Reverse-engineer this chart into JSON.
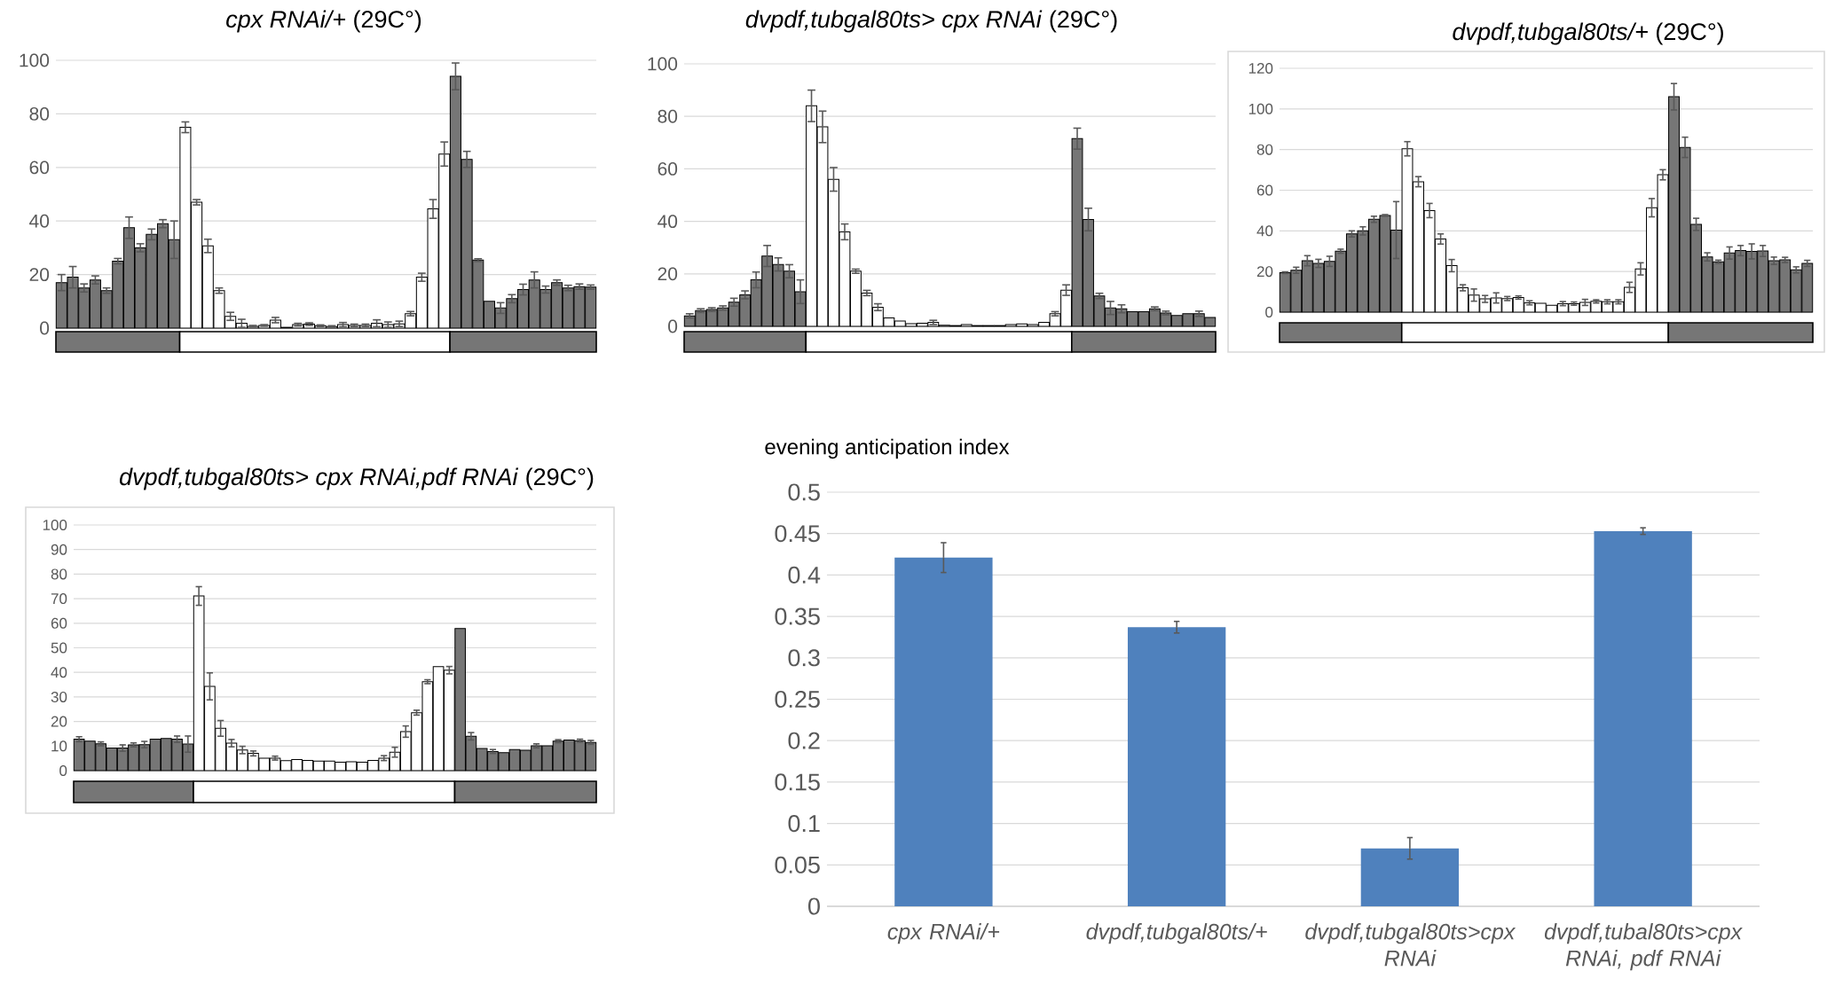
{
  "chart_data": [
    {
      "type": "bar",
      "title": "*cpx RNAi/+* (29C°)",
      "categories": [
        null,
        null,
        null,
        null,
        null,
        null,
        null,
        null,
        null,
        null,
        null,
        null,
        null,
        null,
        null,
        null,
        null,
        null,
        null,
        null,
        null,
        null,
        null,
        null,
        null,
        null,
        null,
        null,
        null,
        null,
        null,
        null,
        null,
        null,
        null,
        null,
        null,
        null,
        null,
        null,
        null,
        null,
        null,
        null,
        null,
        null,
        null,
        null
      ],
      "values": [
        17,
        19,
        15,
        18,
        14,
        25,
        37.5,
        30,
        35,
        39,
        33,
        75,
        47,
        30.7,
        14,
        4.4,
        1.8,
        0.7,
        1,
        3,
        0.3,
        1.3,
        1.5,
        0.9,
        0.6,
        1.3,
        1,
        1,
        1.8,
        1.3,
        1.6,
        5.4,
        19,
        44.5,
        65,
        94,
        63,
        25.4,
        10,
        7.5,
        11,
        14.4,
        18,
        14.4,
        17,
        15,
        15.5,
        15.3
      ],
      "errors": [
        3,
        4,
        1.5,
        1.5,
        1,
        1,
        4,
        1.5,
        2,
        1.5,
        7,
        2,
        1,
        2.5,
        1,
        1.5,
        1.5,
        0.3,
        0.3,
        1,
        null,
        0.5,
        0.5,
        0.3,
        0.3,
        0.8,
        0.5,
        0.5,
        1.3,
        1,
        1,
        0.8,
        1.5,
        3.5,
        4.5,
        5,
        3,
        0.5,
        null,
        2,
        1.5,
        2,
        3,
        1.3,
        1,
        1,
        1,
        0.8
      ],
      "colors": [
        "#767676",
        "#767676",
        "#767676",
        "#767676",
        "#767676",
        "#767676",
        "#767676",
        "#767676",
        "#767676",
        "#767676",
        "#767676",
        "#ffffff",
        "#ffffff",
        "#ffffff",
        "#ffffff",
        "#ffffff",
        "#ffffff",
        "#ffffff",
        "#ffffff",
        "#ffffff",
        "#ffffff",
        "#ffffff",
        "#ffffff",
        "#ffffff",
        "#ffffff",
        "#ffffff",
        "#ffffff",
        "#ffffff",
        "#ffffff",
        "#ffffff",
        "#ffffff",
        "#ffffff",
        "#ffffff",
        "#ffffff",
        "#ffffff",
        "#767676",
        "#767676",
        "#767676",
        "#767676",
        "#767676",
        "#767676",
        "#767676",
        "#767676",
        "#767676",
        "#767676",
        "#767676",
        "#767676",
        "#767676"
      ],
      "ylim": [
        0,
        100
      ],
      "yticks": [
        0,
        20,
        40,
        60,
        80,
        100
      ],
      "grid": "y",
      "tick_labels": "y"
    },
    {
      "type": "bar",
      "title": "*dvpdf,tubgal80ts> cpx RNAi* (29C°)",
      "categories": [
        null,
        null,
        null,
        null,
        null,
        null,
        null,
        null,
        null,
        null,
        null,
        null,
        null,
        null,
        null,
        null,
        null,
        null,
        null,
        null,
        null,
        null,
        null,
        null,
        null,
        null,
        null,
        null,
        null,
        null,
        null,
        null,
        null,
        null,
        null,
        null,
        null,
        null,
        null,
        null,
        null,
        null,
        null,
        null,
        null,
        null,
        null,
        null
      ],
      "values": [
        4,
        6,
        6.4,
        7,
        9.2,
        12,
        17.7,
        26.8,
        23.6,
        21,
        13.2,
        84,
        76,
        56,
        36,
        21,
        12.7,
        7.3,
        3.2,
        2,
        1,
        1.2,
        1.5,
        0.4,
        0.3,
        0.7,
        0.3,
        0.3,
        0.3,
        0.7,
        0.9,
        0.7,
        1.5,
        4.8,
        13.8,
        71.5,
        40.7,
        11.6,
        7,
        6.7,
        5.6,
        5.6,
        6.7,
        5.1,
        4.1,
        4.8,
        4.8,
        3.4
      ],
      "errors": [
        0.8,
        0.7,
        0.7,
        0.8,
        1.5,
        1.5,
        3,
        4,
        2.5,
        2.5,
        4.5,
        6,
        6,
        4.5,
        3,
        0.8,
        1,
        1.3,
        null,
        null,
        null,
        null,
        0.8,
        null,
        null,
        null,
        null,
        null,
        null,
        null,
        null,
        null,
        null,
        0.8,
        2,
        4,
        4.3,
        1,
        2.5,
        1.5,
        null,
        null,
        0.7,
        0.7,
        null,
        null,
        1,
        null
      ],
      "colors": [
        "#767676",
        "#767676",
        "#767676",
        "#767676",
        "#767676",
        "#767676",
        "#767676",
        "#767676",
        "#767676",
        "#767676",
        "#767676",
        "#ffffff",
        "#ffffff",
        "#ffffff",
        "#ffffff",
        "#ffffff",
        "#ffffff",
        "#ffffff",
        "#ffffff",
        "#ffffff",
        "#ffffff",
        "#ffffff",
        "#ffffff",
        "#ffffff",
        "#ffffff",
        "#ffffff",
        "#ffffff",
        "#ffffff",
        "#ffffff",
        "#ffffff",
        "#ffffff",
        "#ffffff",
        "#ffffff",
        "#ffffff",
        "#ffffff",
        "#767676",
        "#767676",
        "#767676",
        "#767676",
        "#767676",
        "#767676",
        "#767676",
        "#767676",
        "#767676",
        "#767676",
        "#767676",
        "#767676",
        "#767676"
      ],
      "ylim": [
        0,
        100
      ],
      "yticks": [
        0,
        20,
        40,
        60,
        80,
        100
      ],
      "grid": "y",
      "tick_labels": "y"
    },
    {
      "type": "bar",
      "title": "*dvpdf,tubgal80ts/+* (29C°)",
      "categories": [
        null,
        null,
        null,
        null,
        null,
        null,
        null,
        null,
        null,
        null,
        null,
        null,
        null,
        null,
        null,
        null,
        null,
        null,
        null,
        null,
        null,
        null,
        null,
        null,
        null,
        null,
        null,
        null,
        null,
        null,
        null,
        null,
        null,
        null,
        null,
        null,
        null,
        null,
        null,
        null,
        null,
        null,
        null,
        null,
        null,
        null,
        null,
        null
      ],
      "values": [
        19.4,
        20.6,
        25.3,
        24,
        25,
        30,
        38.5,
        40,
        45.7,
        47.6,
        40.4,
        80.4,
        64.2,
        50,
        36,
        22.9,
        12,
        8.4,
        6.5,
        7,
        6.7,
        7.2,
        4.6,
        4.4,
        3.4,
        4.2,
        4.2,
        4.8,
        5.3,
        5.1,
        5.1,
        12.2,
        21.3,
        51.4,
        67.6,
        106,
        81.1,
        43.2,
        27.2,
        24.8,
        29.1,
        30.3,
        29.9,
        30.1,
        25.3,
        25.7,
        20.8,
        24
      ],
      "errors": [
        0.4,
        1.5,
        2.5,
        2,
        2.5,
        1,
        1.5,
        2,
        1.5,
        0.4,
        14,
        3.5,
        2.5,
        3.5,
        2.5,
        3,
        1.5,
        3,
        1.7,
        2.5,
        1,
        0.8,
        1,
        null,
        null,
        1,
        0.8,
        1.5,
        0.8,
        1,
        1,
        2.5,
        3,
        4.5,
        2.5,
        6.5,
        5,
        3,
        2,
        0.8,
        3,
        2.5,
        3.7,
        2.7,
        1.8,
        1.3,
        1.5,
        1.5
      ],
      "colors": [
        "#767676",
        "#767676",
        "#767676",
        "#767676",
        "#767676",
        "#767676",
        "#767676",
        "#767676",
        "#767676",
        "#767676",
        "#767676",
        "#ffffff",
        "#ffffff",
        "#ffffff",
        "#ffffff",
        "#ffffff",
        "#ffffff",
        "#ffffff",
        "#ffffff",
        "#ffffff",
        "#ffffff",
        "#ffffff",
        "#ffffff",
        "#ffffff",
        "#ffffff",
        "#ffffff",
        "#ffffff",
        "#ffffff",
        "#ffffff",
        "#ffffff",
        "#ffffff",
        "#ffffff",
        "#ffffff",
        "#ffffff",
        "#ffffff",
        "#767676",
        "#767676",
        "#767676",
        "#767676",
        "#767676",
        "#767676",
        "#767676",
        "#767676",
        "#767676",
        "#767676",
        "#767676",
        "#767676",
        "#767676"
      ],
      "ylim": [
        0,
        120
      ],
      "yticks": [
        0,
        20,
        40,
        60,
        80,
        100,
        120
      ],
      "grid": "y",
      "tick_labels": "y"
    },
    {
      "type": "bar",
      "title": "*dvpdf,tubgal80ts> cpx RNAi,pdf RNAi* (29C°)",
      "categories": [
        null,
        null,
        null,
        null,
        null,
        null,
        null,
        null,
        null,
        null,
        null,
        null,
        null,
        null,
        null,
        null,
        null,
        null,
        null,
        null,
        null,
        null,
        null,
        null,
        null,
        null,
        null,
        null,
        null,
        null,
        null,
        null,
        null,
        null,
        null,
        null,
        null,
        null,
        null,
        null,
        null,
        null,
        null,
        null,
        null,
        null,
        null,
        null
      ],
      "values": [
        12.8,
        12,
        10.9,
        9.2,
        9.2,
        10.5,
        10.6,
        12.8,
        13.1,
        12.8,
        10.8,
        71.1,
        34.3,
        17.2,
        11.2,
        8.4,
        7,
        5.1,
        5.1,
        4.1,
        4.5,
        4.2,
        3.9,
        3.9,
        3.4,
        3.6,
        3.4,
        4.2,
        5.1,
        7.5,
        15.9,
        23.6,
        36.2,
        42.3,
        40.9,
        57.9,
        14,
        9,
        7.8,
        7.3,
        8.6,
        8.3,
        10.1,
        10.1,
        12,
        12.5,
        12.2,
        11.5
      ],
      "errors": [
        1,
        null,
        0.8,
        null,
        1.3,
        0.8,
        1.3,
        null,
        null,
        1.3,
        3.3,
        3.8,
        5.5,
        3.2,
        1.5,
        1.5,
        1,
        null,
        0.8,
        null,
        null,
        null,
        null,
        null,
        null,
        null,
        null,
        null,
        1,
        2,
        2.3,
        1,
        0.8,
        null,
        1.5,
        null,
        1.5,
        null,
        0.8,
        null,
        null,
        null,
        0.8,
        null,
        0.6,
        null,
        0.6,
        0.8
      ],
      "colors": [
        "#767676",
        "#767676",
        "#767676",
        "#767676",
        "#767676",
        "#767676",
        "#767676",
        "#767676",
        "#767676",
        "#767676",
        "#767676",
        "#ffffff",
        "#ffffff",
        "#ffffff",
        "#ffffff",
        "#ffffff",
        "#ffffff",
        "#ffffff",
        "#ffffff",
        "#ffffff",
        "#ffffff",
        "#ffffff",
        "#ffffff",
        "#ffffff",
        "#ffffff",
        "#ffffff",
        "#ffffff",
        "#ffffff",
        "#ffffff",
        "#ffffff",
        "#ffffff",
        "#ffffff",
        "#ffffff",
        "#ffffff",
        "#ffffff",
        "#767676",
        "#767676",
        "#767676",
        "#767676",
        "#767676",
        "#767676",
        "#767676",
        "#767676",
        "#767676",
        "#767676",
        "#767676",
        "#767676",
        "#767676"
      ],
      "ylim": [
        0,
        100
      ],
      "yticks": [
        0,
        10,
        20,
        30,
        40,
        50,
        60,
        70,
        80,
        90,
        100
      ],
      "grid": "y",
      "tick_labels": "y"
    },
    {
      "type": "bar",
      "title": "evening anticipation index",
      "categories": [
        "cpx RNAi/+",
        "dvpdf,tubgal80ts/+",
        "dvpdf,tubgal80ts>cpx RNAi",
        "dvpdf,tubal80ts>cpx RNAi, pdf RNAi"
      ],
      "values": [
        0.421,
        0.337,
        0.07,
        0.453
      ],
      "errors": [
        0.018,
        0.007,
        0.013,
        0.004
      ],
      "color": "#4f81bd",
      "ylim": [
        0,
        0.5
      ],
      "yticks": [
        0,
        0.05,
        0.1,
        0.15,
        0.2,
        0.25,
        0.3,
        0.35,
        0.4,
        0.45,
        0.5
      ],
      "grid": "y"
    }
  ]
}
